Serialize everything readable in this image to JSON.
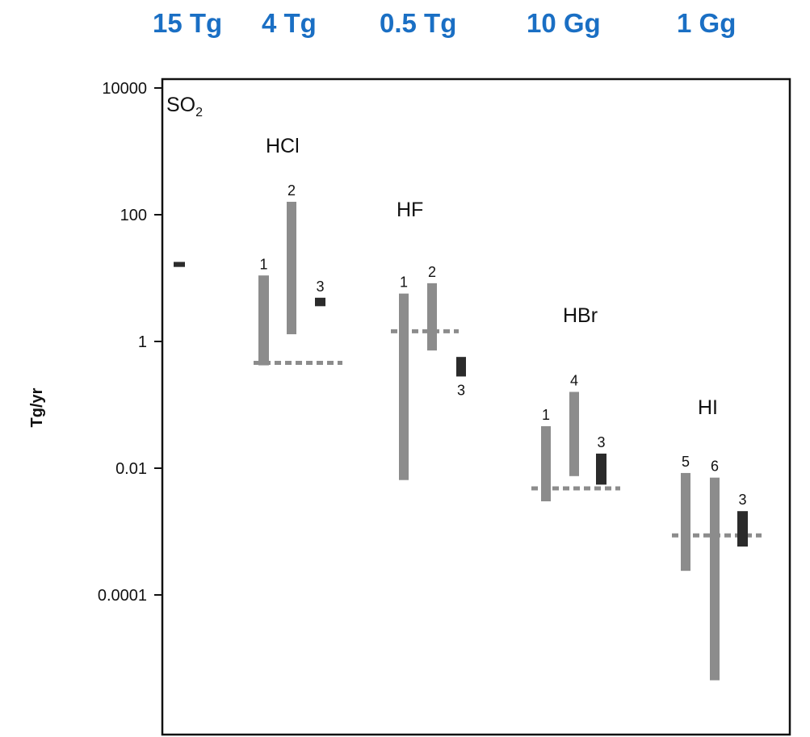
{
  "header": {
    "color": "#1a6fc4",
    "labels": [
      "15 Tg",
      "4 Tg",
      "0.5 Tg",
      "10 Gg",
      "1  Gg"
    ]
  },
  "chart_data": {
    "type": "bar",
    "ylabel": "Tg/yr",
    "yscale": "log",
    "ylim": [
      1e-06,
      10000
    ],
    "yticks": [
      {
        "value": 10000,
        "label": "10000"
      },
      {
        "value": 100,
        "label": "100"
      },
      {
        "value": 1,
        "label": "1"
      },
      {
        "value": 0.01,
        "label": "0.01"
      },
      {
        "value": 0.0001,
        "label": "0.0001"
      }
    ],
    "colors": {
      "gray": "#8c8c8c",
      "dark": "#2b2b2b",
      "dashed": "#8c8c8c",
      "axis": "#111111"
    },
    "groups": [
      {
        "name": "SO2",
        "bars": [
          {
            "label": "",
            "low": 15,
            "high": 18,
            "color": "dark"
          }
        ]
      },
      {
        "name": "HCl",
        "dashed_value": 0.46,
        "bars": [
          {
            "label": "1",
            "low": 0.42,
            "high": 11,
            "color": "gray"
          },
          {
            "label": "2",
            "low": 1.3,
            "high": 160,
            "color": "gray"
          },
          {
            "label": "3",
            "low": 3.6,
            "high": 4.9,
            "color": "dark"
          }
        ]
      },
      {
        "name": "HF",
        "dashed_value": 1.45,
        "bars": [
          {
            "label": "1",
            "low": 0.0065,
            "high": 5.7,
            "color": "gray"
          },
          {
            "label": "2",
            "low": 0.72,
            "high": 8.3,
            "color": "gray"
          },
          {
            "label": "3",
            "low": 0.28,
            "high": 0.57,
            "color": "dark"
          }
        ]
      },
      {
        "name": "HBr",
        "dashed_value": 0.0048,
        "bars": [
          {
            "label": "1",
            "low": 0.003,
            "high": 0.046,
            "color": "gray"
          },
          {
            "label": "4",
            "low": 0.0075,
            "high": 0.16,
            "color": "gray"
          },
          {
            "label": "3",
            "low": 0.0055,
            "high": 0.017,
            "color": "dark"
          }
        ]
      },
      {
        "name": "HI",
        "dashed_value": 0.00087,
        "bars": [
          {
            "label": "5",
            "low": 0.00024,
            "high": 0.0084,
            "color": "gray"
          },
          {
            "label": "6",
            "low": 4.5e-06,
            "high": 0.0071,
            "color": "gray"
          },
          {
            "label": "3",
            "low": 0.00058,
            "high": 0.0021,
            "color": "dark"
          }
        ]
      }
    ]
  }
}
